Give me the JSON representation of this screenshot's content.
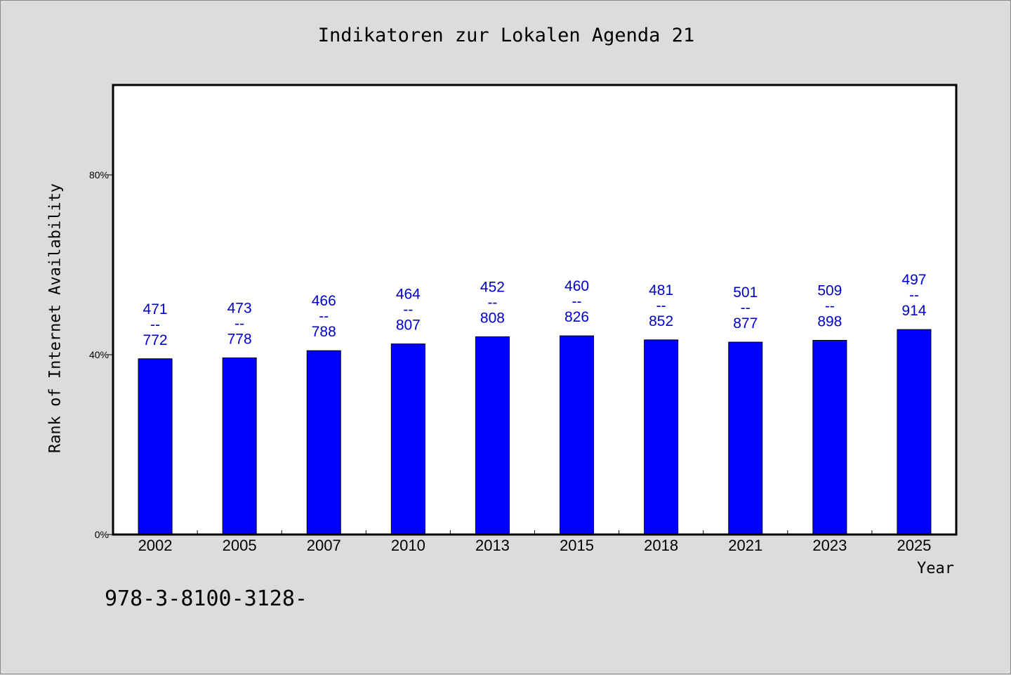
{
  "chart_data": {
    "type": "bar",
    "title": "Indikatoren zur Lokalen Agenda 21",
    "xlabel": "Year",
    "ylabel": "Rank of Internet Availability",
    "ylim": [
      0,
      100
    ],
    "yticks": [
      0,
      40,
      80
    ],
    "ytick_labels": [
      "0%",
      "40%",
      "80%"
    ],
    "grid": false,
    "categories": [
      "2002",
      "2005",
      "2007",
      "2010",
      "2013",
      "2015",
      "2018",
      "2021",
      "2023",
      "2025"
    ],
    "series": [
      {
        "values": [
          39.1,
          39.3,
          40.9,
          42.4,
          44.0,
          44.2,
          43.3,
          42.8,
          43.2,
          45.6
        ],
        "color": "#0000ff"
      }
    ],
    "data_labels": [
      {
        "rank": "471",
        "separator": "--",
        "total": "772"
      },
      {
        "rank": "473",
        "separator": "--",
        "total": "778"
      },
      {
        "rank": "466",
        "separator": "--",
        "total": "788"
      },
      {
        "rank": "464",
        "separator": "--",
        "total": "807"
      },
      {
        "rank": "452",
        "separator": "--",
        "total": "808"
      },
      {
        "rank": "460",
        "separator": "--",
        "total": "826"
      },
      {
        "rank": "481",
        "separator": "--",
        "total": "852"
      },
      {
        "rank": "501",
        "separator": "--",
        "total": "877"
      },
      {
        "rank": "509",
        "separator": "--",
        "total": "898"
      },
      {
        "rank": "497",
        "separator": "--",
        "total": "914"
      }
    ],
    "label_color": "#0000cc"
  },
  "footnote": "978-3-8100-3128-"
}
